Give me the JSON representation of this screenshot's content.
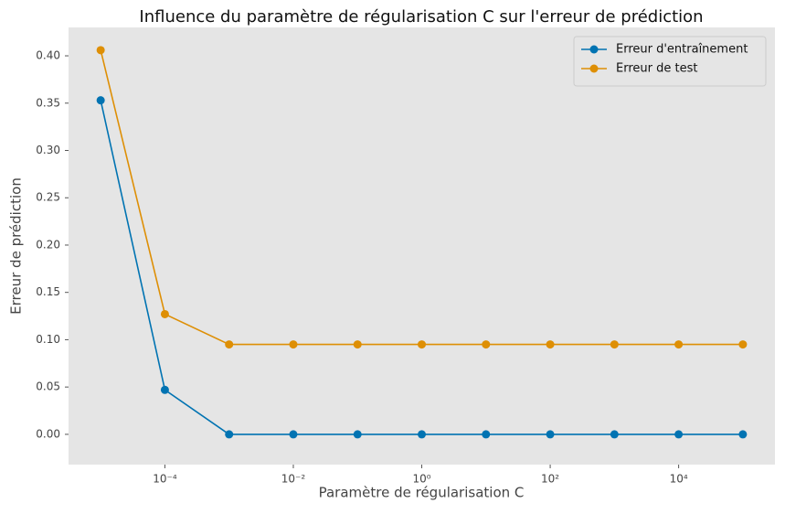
{
  "chart_data": {
    "type": "line",
    "title": "Influence du paramètre de régularisation C sur l'erreur de prédiction",
    "x_label": "Paramètre de régularisation C",
    "y_label": "Erreur de prédiction",
    "x": [
      1e-05,
      0.0001,
      0.001,
      0.01,
      0.1,
      1,
      10,
      100,
      1000,
      10000,
      100000
    ],
    "series": [
      {
        "name": "Erreur d'entraînement",
        "color": "#0173b2",
        "values": [
          0.353,
          0.047,
          0,
          0,
          0,
          0,
          0,
          0,
          0,
          0,
          0
        ]
      },
      {
        "name": "Erreur de test",
        "color": "#de8f05",
        "values": [
          0.406,
          0.127,
          0.095,
          0.095,
          0.095,
          0.095,
          0.095,
          0.095,
          0.095,
          0.095,
          0.095
        ]
      }
    ],
    "x_scale": "log",
    "xlim": [
      3.16e-06,
      316000
    ],
    "xticks": [
      {
        "value": 0.0001,
        "label": "10⁻⁴"
      },
      {
        "value": 0.01,
        "label": "10⁻²"
      },
      {
        "value": 1,
        "label": "10⁰"
      },
      {
        "value": 100,
        "label": "10²"
      },
      {
        "value": 10000,
        "label": "10⁴"
      }
    ],
    "ylim": [
      -0.032,
      0.43
    ],
    "yticks": [
      {
        "value": 0,
        "label": "0.00"
      },
      {
        "value": 0.05,
        "label": "0.05"
      },
      {
        "value": 0.1,
        "label": "0.10"
      },
      {
        "value": 0.15,
        "label": "0.15"
      },
      {
        "value": 0.2,
        "label": "0.20"
      },
      {
        "value": 0.25,
        "label": "0.25"
      },
      {
        "value": 0.3,
        "label": "0.30"
      },
      {
        "value": 0.35,
        "label": "0.35"
      },
      {
        "value": 0.4,
        "label": "0.40"
      }
    ],
    "grid": false,
    "legend": "upper right"
  }
}
